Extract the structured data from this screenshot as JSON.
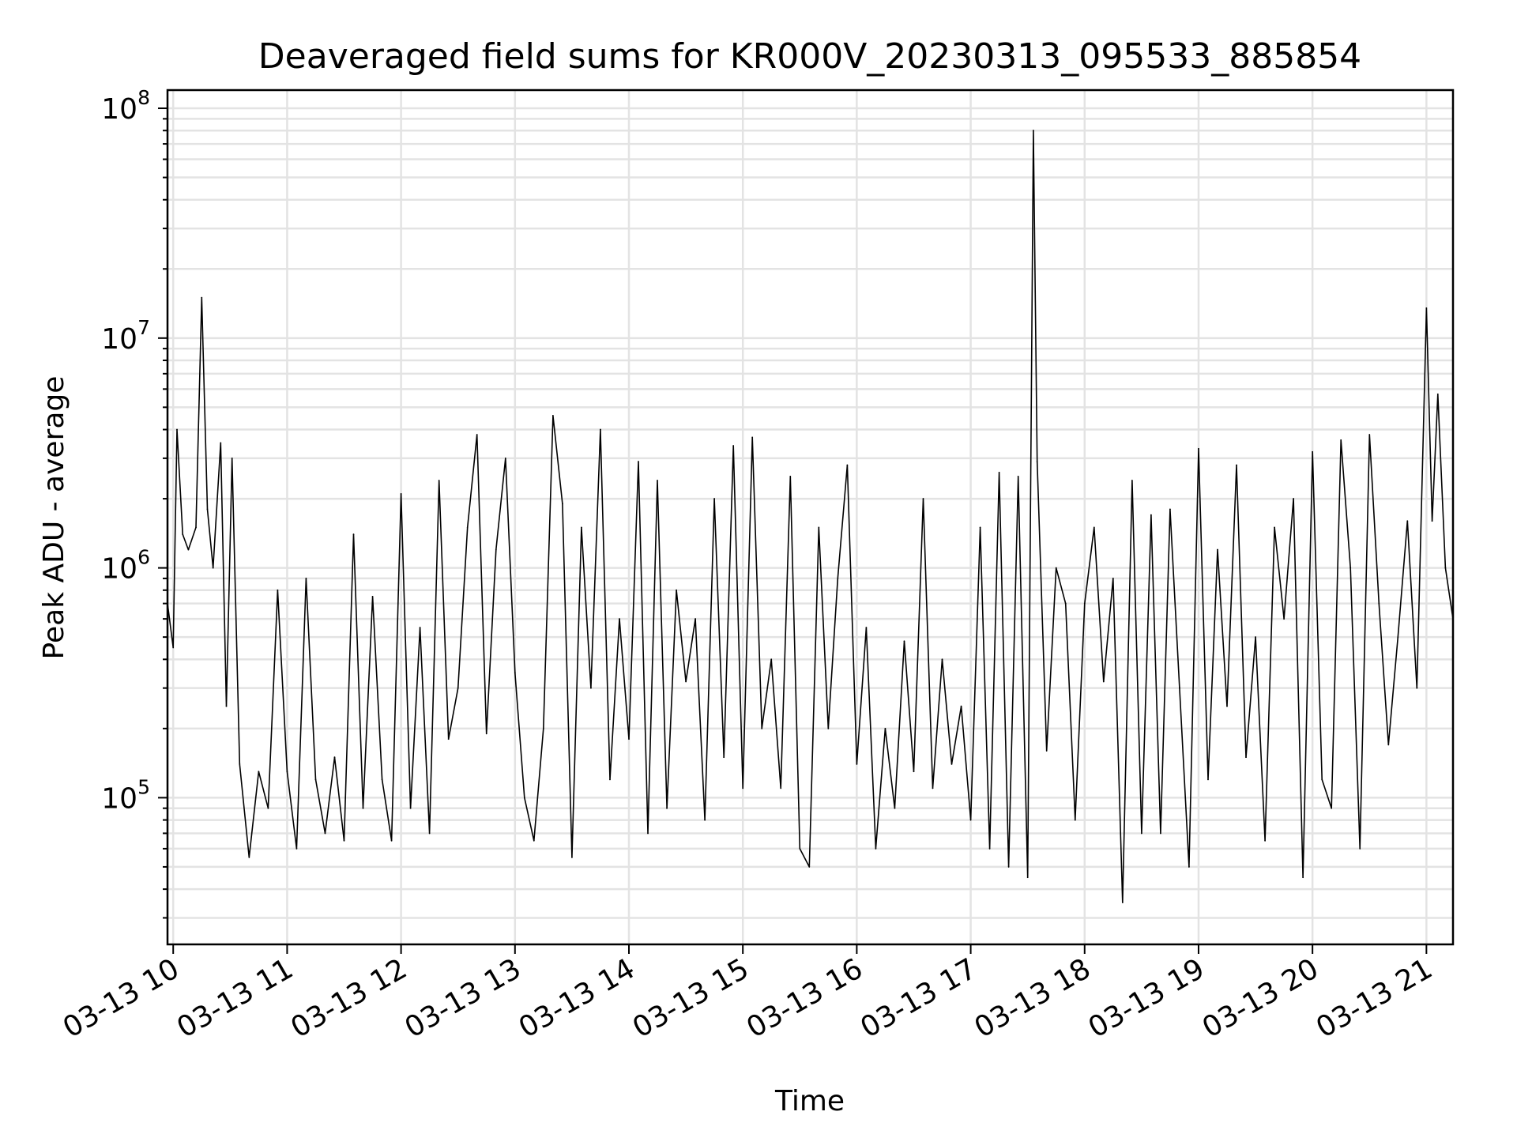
{
  "chart_data": {
    "type": "line",
    "title": "Deaveraged field sums for KR000V_20230313_095533_885854",
    "xlabel": "Time",
    "ylabel": "Peak ADU - average",
    "yscale": "log",
    "ylim": [
      23000,
      120000000
    ],
    "xlim": [
      "03-13 09:57",
      "03-13 21:14"
    ],
    "grid": true,
    "line_color": "#000000",
    "x_ticks": [
      "03-13 10",
      "03-13 11",
      "03-13 12",
      "03-13 13",
      "03-13 14",
      "03-13 15",
      "03-13 16",
      "03-13 17",
      "03-13 18",
      "03-13 19",
      "03-13 20",
      "03-13 21"
    ],
    "y_ticks": [
      {
        "base": "10",
        "exp": "5",
        "value": 100000
      },
      {
        "base": "10",
        "exp": "6",
        "value": 1000000
      },
      {
        "base": "10",
        "exp": "7",
        "value": 10000000
      },
      {
        "base": "10",
        "exp": "8",
        "value": 100000000
      }
    ],
    "series": [
      {
        "x": [
          "03-13 09:57",
          "03-13 10:00",
          "03-13 10:02",
          "03-13 10:05",
          "03-13 10:08",
          "03-13 10:12",
          "03-13 10:15",
          "03-13 10:18",
          "03-13 10:21",
          "03-13 10:25",
          "03-13 10:28",
          "03-13 10:31",
          "03-13 10:35",
          "03-13 10:40",
          "03-13 10:45",
          "03-13 10:50",
          "03-13 10:55",
          "03-13 11:00",
          "03-13 11:05",
          "03-13 11:10",
          "03-13 11:15",
          "03-13 11:20",
          "03-13 11:25",
          "03-13 11:30",
          "03-13 11:35",
          "03-13 11:40",
          "03-13 11:45",
          "03-13 11:50",
          "03-13 11:55",
          "03-13 12:00",
          "03-13 12:05",
          "03-13 12:10",
          "03-13 12:15",
          "03-13 12:20",
          "03-13 12:25",
          "03-13 12:30",
          "03-13 12:35",
          "03-13 12:40",
          "03-13 12:45",
          "03-13 12:50",
          "03-13 12:55",
          "03-13 13:00",
          "03-13 13:05",
          "03-13 13:10",
          "03-13 13:15",
          "03-13 13:20",
          "03-13 13:25",
          "03-13 13:30",
          "03-13 13:35",
          "03-13 13:40",
          "03-13 13:45",
          "03-13 13:50",
          "03-13 13:55",
          "03-13 14:00",
          "03-13 14:05",
          "03-13 14:10",
          "03-13 14:15",
          "03-13 14:20",
          "03-13 14:25",
          "03-13 14:30",
          "03-13 14:35",
          "03-13 14:40",
          "03-13 14:45",
          "03-13 14:50",
          "03-13 14:55",
          "03-13 15:00",
          "03-13 15:05",
          "03-13 15:10",
          "03-13 15:15",
          "03-13 15:20",
          "03-13 15:25",
          "03-13 15:30",
          "03-13 15:35",
          "03-13 15:40",
          "03-13 15:45",
          "03-13 15:50",
          "03-13 15:55",
          "03-13 16:00",
          "03-13 16:05",
          "03-13 16:10",
          "03-13 16:15",
          "03-13 16:20",
          "03-13 16:25",
          "03-13 16:30",
          "03-13 16:35",
          "03-13 16:40",
          "03-13 16:45",
          "03-13 16:50",
          "03-13 16:55",
          "03-13 17:00",
          "03-13 17:05",
          "03-13 17:10",
          "03-13 17:15",
          "03-13 17:20",
          "03-13 17:25",
          "03-13 17:30",
          "03-13 17:33",
          "03-13 17:35",
          "03-13 17:40",
          "03-13 17:45",
          "03-13 17:50",
          "03-13 17:55",
          "03-13 18:00",
          "03-13 18:05",
          "03-13 18:10",
          "03-13 18:15",
          "03-13 18:20",
          "03-13 18:25",
          "03-13 18:30",
          "03-13 18:35",
          "03-13 18:40",
          "03-13 18:45",
          "03-13 18:50",
          "03-13 18:55",
          "03-13 19:00",
          "03-13 19:05",
          "03-13 19:10",
          "03-13 19:15",
          "03-13 19:20",
          "03-13 19:25",
          "03-13 19:30",
          "03-13 19:35",
          "03-13 19:40",
          "03-13 19:45",
          "03-13 19:50",
          "03-13 19:55",
          "03-13 20:00",
          "03-13 20:05",
          "03-13 20:10",
          "03-13 20:15",
          "03-13 20:20",
          "03-13 20:25",
          "03-13 20:30",
          "03-13 20:35",
          "03-13 20:40",
          "03-13 20:45",
          "03-13 20:50",
          "03-13 20:55",
          "03-13 21:00",
          "03-13 21:03",
          "03-13 21:06",
          "03-13 21:10",
          "03-13 21:14"
        ],
        "y": [
          700000,
          450000,
          4000000,
          1400000,
          1200000,
          1500000,
          15000000,
          1800000,
          1000000,
          3500000,
          250000,
          3000000,
          140000,
          55000,
          130000,
          90000,
          800000,
          130000,
          60000,
          900000,
          120000,
          70000,
          150000,
          65000,
          1400000,
          90000,
          750000,
          120000,
          65000,
          2100000,
          90000,
          550000,
          70000,
          2400000,
          180000,
          300000,
          1500000,
          3800000,
          190000,
          1200000,
          3000000,
          350000,
          100000,
          65000,
          200000,
          4600000,
          1900000,
          55000,
          1500000,
          300000,
          4000000,
          120000,
          600000,
          180000,
          2900000,
          70000,
          2400000,
          90000,
          800000,
          320000,
          600000,
          80000,
          2000000,
          150000,
          3400000,
          110000,
          3700000,
          200000,
          400000,
          110000,
          2500000,
          60000,
          50000,
          1500000,
          200000,
          900000,
          2800000,
          140000,
          550000,
          60000,
          200000,
          90000,
          480000,
          130000,
          2000000,
          110000,
          400000,
          140000,
          250000,
          80000,
          1500000,
          60000,
          2600000,
          50000,
          2500000,
          45000,
          80000000,
          2900000,
          160000,
          1000000,
          700000,
          80000,
          700000,
          1500000,
          320000,
          900000,
          35000,
          2400000,
          70000,
          1700000,
          70000,
          1800000,
          300000,
          50000,
          3300000,
          120000,
          1200000,
          250000,
          2800000,
          150000,
          500000,
          65000,
          1500000,
          600000,
          2000000,
          45000,
          3200000,
          120000,
          90000,
          3600000,
          1000000,
          60000,
          3800000,
          700000,
          170000,
          500000,
          1600000,
          300000,
          13500000,
          1600000,
          5700000,
          1000000,
          600000
        ]
      }
    ]
  }
}
